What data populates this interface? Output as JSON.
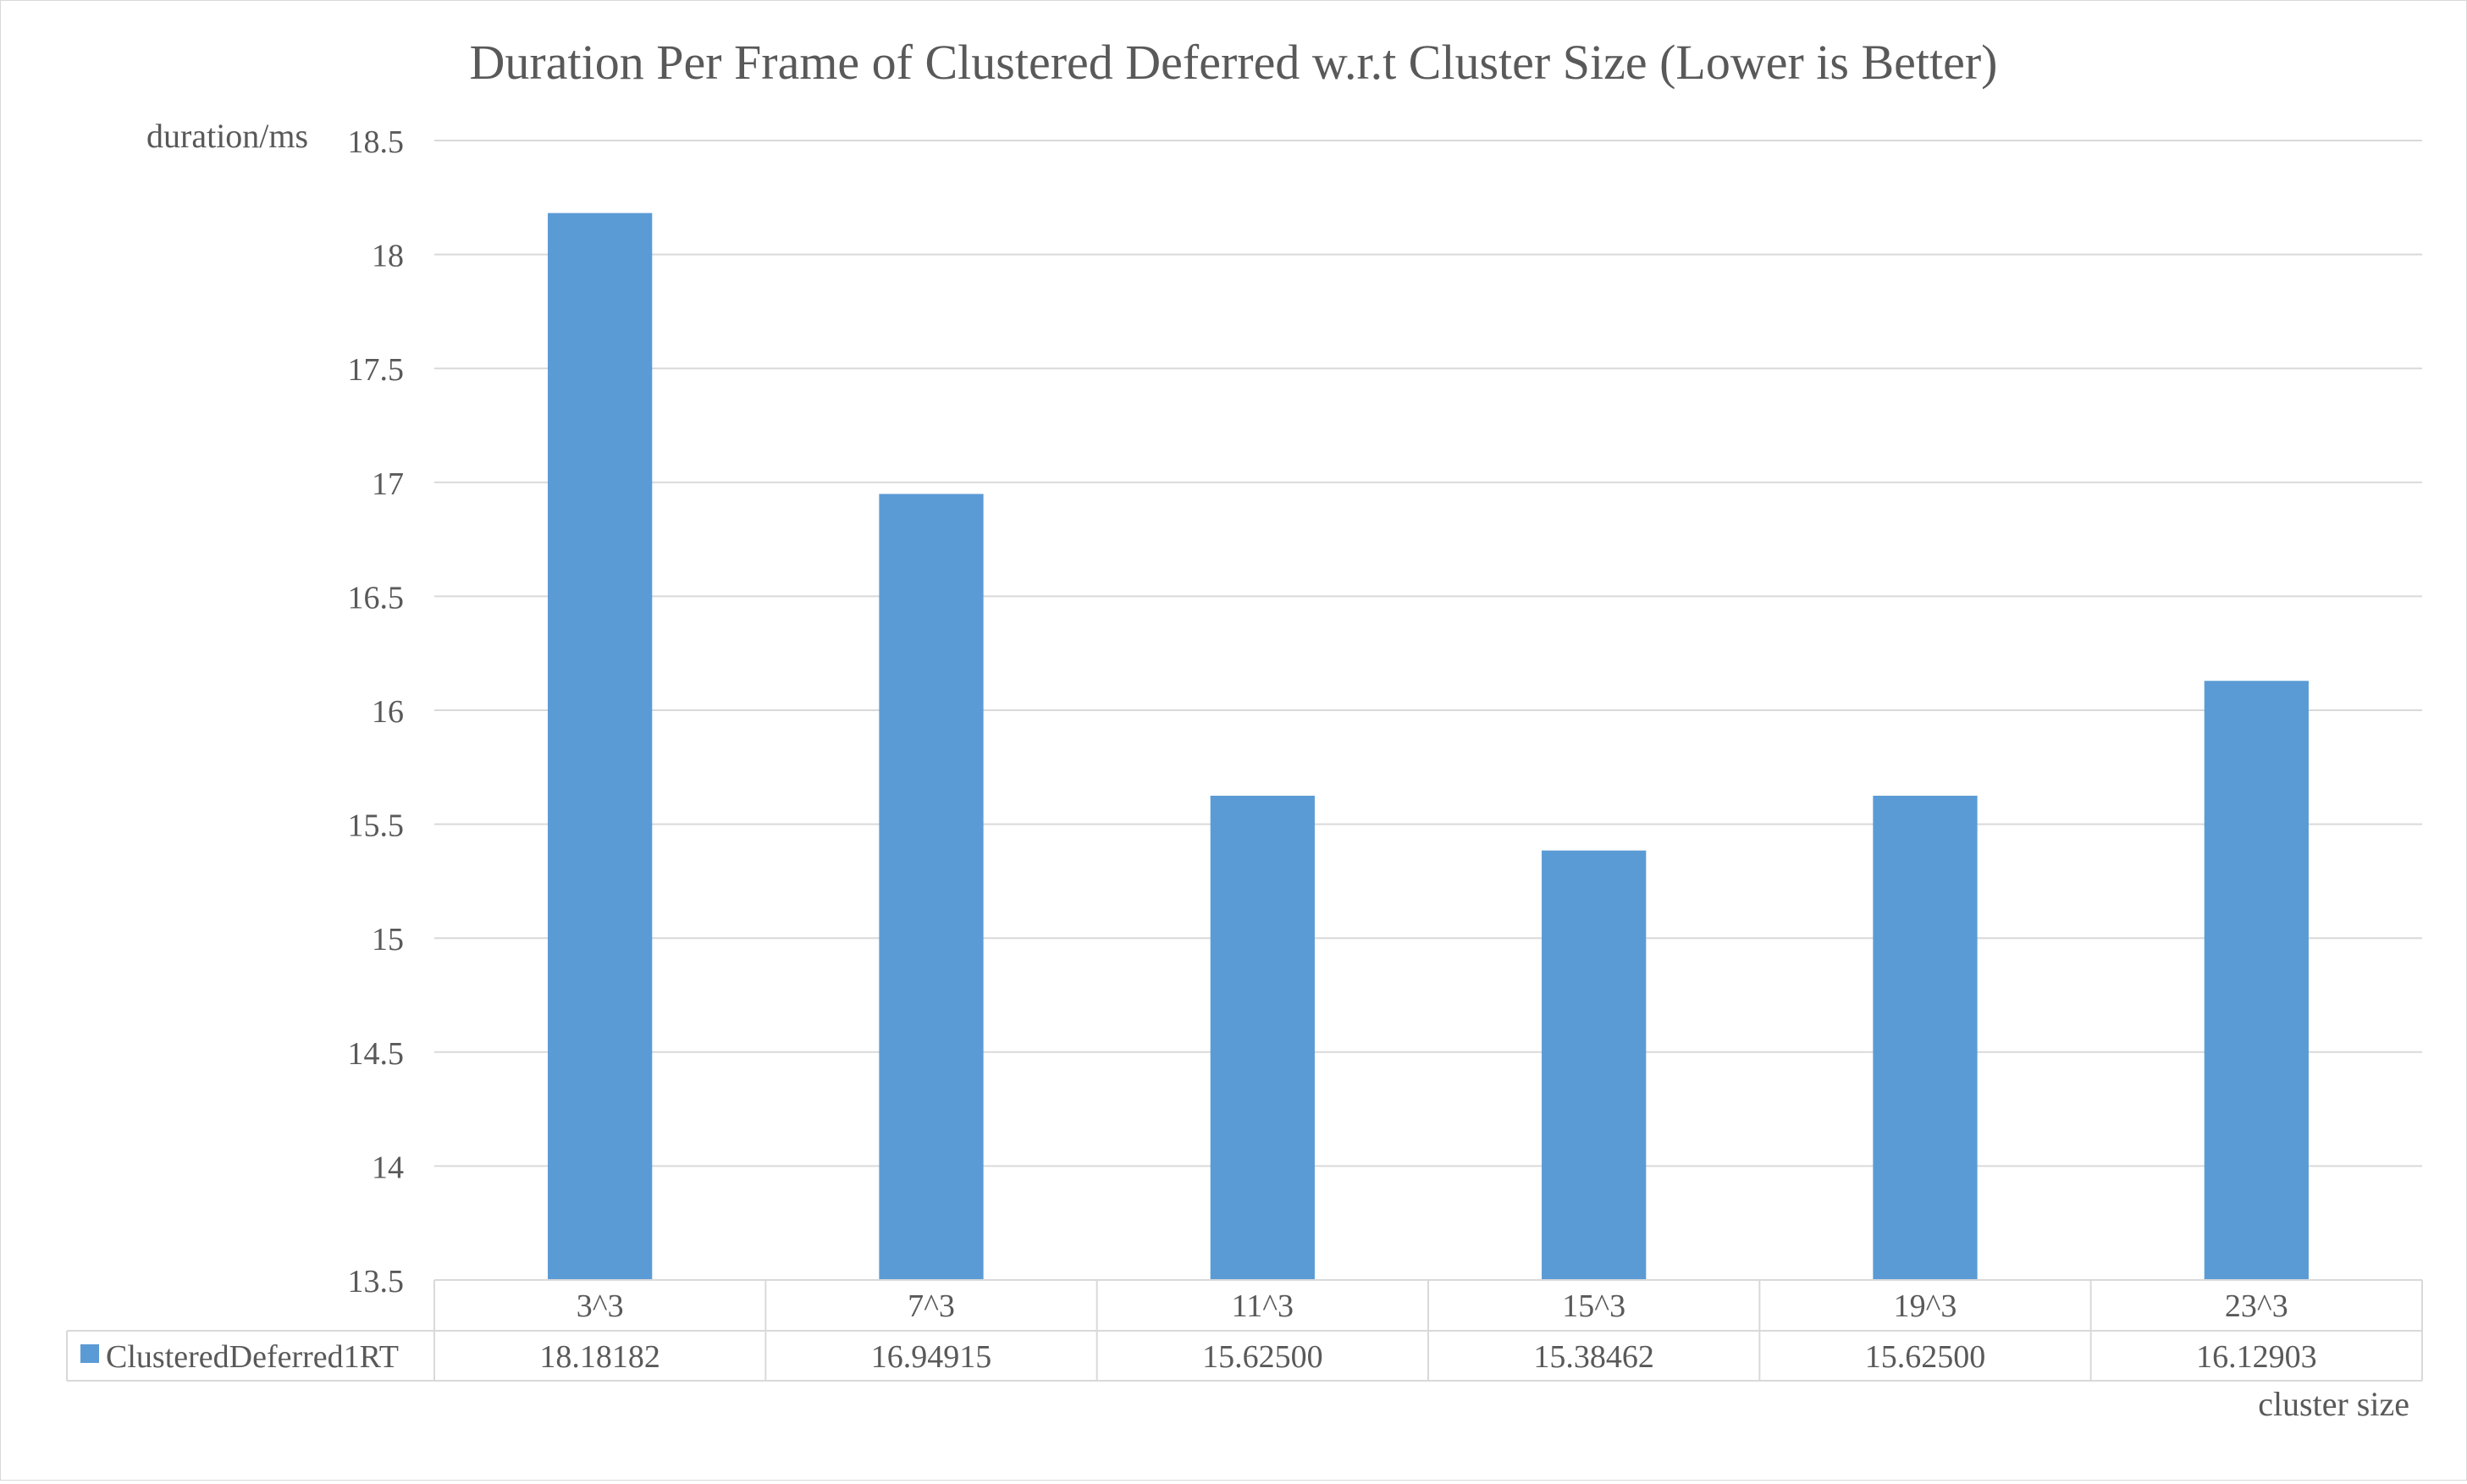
{
  "chart_data": {
    "type": "bar",
    "title": "Duration Per Frame of Clustered Deferred w.r.t Cluster Size (Lower is Better)",
    "xlabel": "cluster size",
    "ylabel": "duration/ms",
    "ylim": [
      13.5,
      18.5
    ],
    "y_ticks": [
      "13.5",
      "14",
      "14.5",
      "15",
      "15.5",
      "16",
      "16.5",
      "17",
      "17.5",
      "18",
      "18.5"
    ],
    "categories": [
      "3^3",
      "7^3",
      "11^3",
      "15^3",
      "19^3",
      "23^3"
    ],
    "series": [
      {
        "name": "ClusteredDeferred1RT",
        "values": [
          18.18182,
          16.94915,
          15.625,
          15.38462,
          15.625,
          16.12903
        ],
        "table_labels": [
          "18.18182",
          "16.94915",
          "15.62500",
          "15.38462",
          "15.62500",
          "16.12903"
        ]
      }
    ],
    "grid": true,
    "legend": "data-table",
    "colors": {
      "bar": "#5b9bd5",
      "grid": "#d9d9d9",
      "text": "#595959"
    }
  }
}
